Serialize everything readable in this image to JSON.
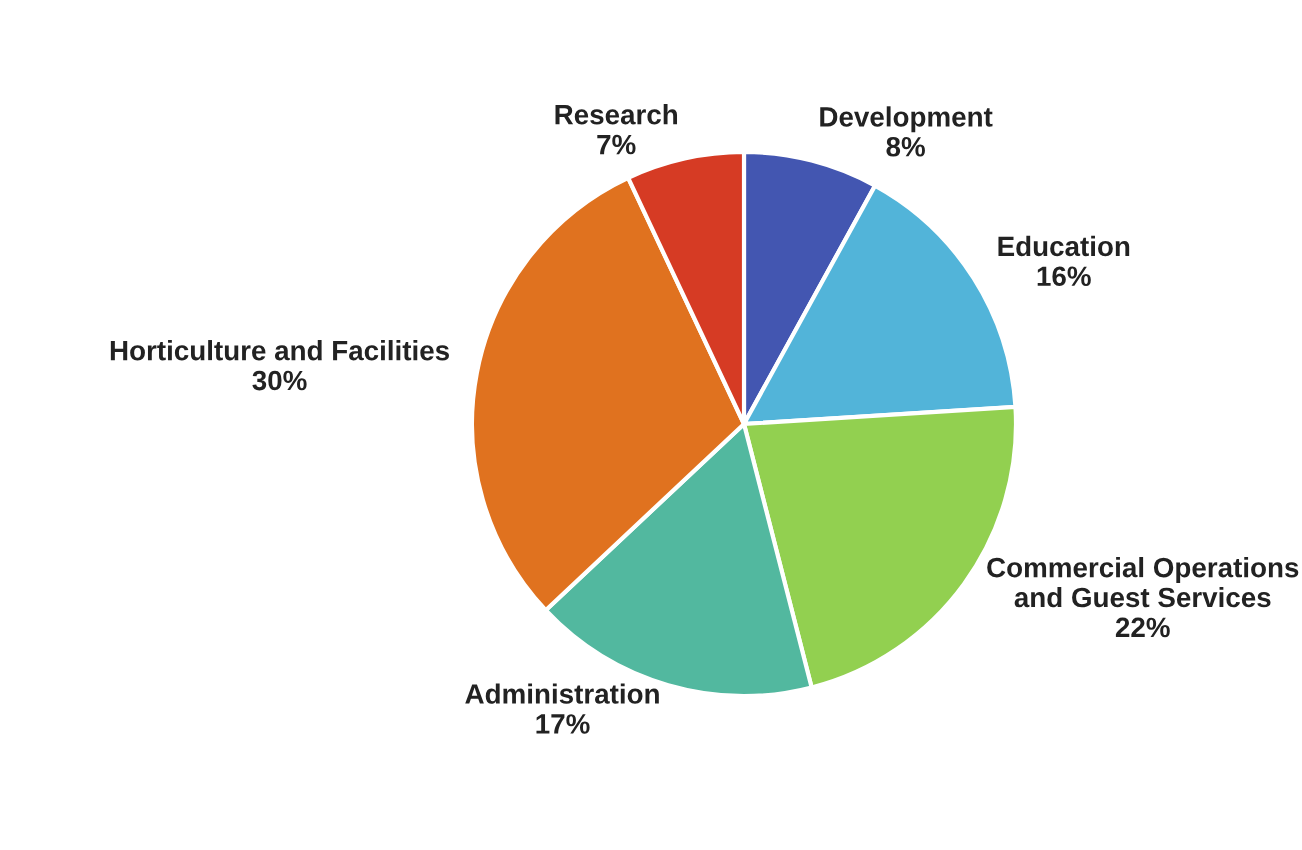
{
  "chart_data": {
    "type": "pie",
    "categories": [
      "Development",
      "Education",
      "Commercial Operations\nand Guest Services",
      "Administration",
      "Horticulture and Facilities",
      "Research"
    ],
    "values": [
      8,
      16,
      22,
      17,
      30,
      7
    ],
    "value_labels": [
      "8%",
      "16%",
      "22%",
      "17%",
      "30%",
      "7%"
    ],
    "colors": [
      "#4356b1",
      "#52b4d9",
      "#92d050",
      "#52b89f",
      "#e0721f",
      "#d63b24"
    ],
    "legend": false
  }
}
